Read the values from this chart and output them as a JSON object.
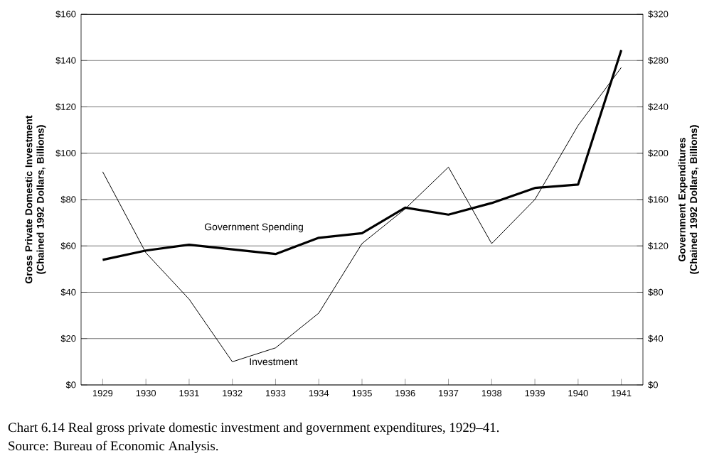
{
  "chart_data": {
    "type": "line",
    "title": "Chart 6.14  Real gross private domestic investment and government expenditures, 1929–41.",
    "annotations": [
      "Source: Bureau of Economic Analysis."
    ],
    "ylabel": "Gross Private Domestic Investment (Chained 1992 Dollars, Billions)",
    "y2label": "Government Expenditures (Chained 1992 Dollars, Billions)",
    "categories": [
      "1929",
      "1930",
      "1931",
      "1932",
      "1933",
      "1934",
      "1935",
      "1936",
      "1937",
      "1938",
      "1939",
      "1940",
      "1941"
    ],
    "series": [
      {
        "name": "Government Spending",
        "color": "#000000",
        "axis": "y2",
        "values": [
          108,
          116,
          121,
          117,
          113,
          127,
          131,
          153,
          147,
          157,
          170,
          173,
          289
        ]
      },
      {
        "name": "Investment",
        "color": "#000000",
        "values": [
          92,
          57,
          37,
          10,
          16,
          31,
          61,
          76,
          94,
          61,
          80,
          112,
          137
        ]
      }
    ],
    "ylim": [
      0,
      160
    ],
    "yticks": [
      {
        "value": 0,
        "label": "$0"
      },
      {
        "value": 20,
        "label": "$20"
      },
      {
        "value": 40,
        "label": "$40"
      },
      {
        "value": 60,
        "label": "$60"
      },
      {
        "value": 80,
        "label": "$80"
      },
      {
        "value": 100,
        "label": "$100"
      },
      {
        "value": 120,
        "label": "$120"
      },
      {
        "value": 140,
        "label": "$140"
      },
      {
        "value": 160,
        "label": "$160"
      }
    ],
    "y2lim": [
      0,
      320
    ],
    "y2ticks": [
      {
        "value": 0,
        "label": "$0"
      },
      {
        "value": 40,
        "label": "$40"
      },
      {
        "value": 80,
        "label": "$80"
      },
      {
        "value": 120,
        "label": "$120"
      },
      {
        "value": 160,
        "label": "$160"
      },
      {
        "value": 200,
        "label": "$200"
      },
      {
        "value": 240,
        "label": "$240"
      },
      {
        "value": 280,
        "label": "$280"
      },
      {
        "value": 320,
        "label": "$320"
      }
    ],
    "grid": "y",
    "marker": "none",
    "line_style": "solid"
  }
}
